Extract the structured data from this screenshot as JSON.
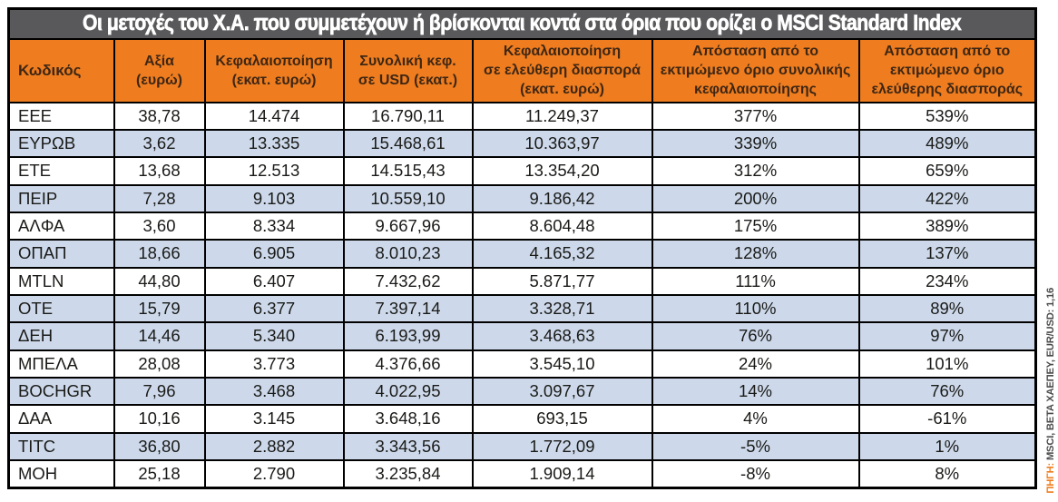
{
  "title": "Οι μετοχές του Χ.Α. που συμμετέχουν ή βρίσκονται κοντά στα όρια που ορίζει ο MSCI Standard Index",
  "source_note": {
    "label": "ΠΗΓΗ:",
    "text": " MSCI, BETA ΧΑΕΠΕΥ, EUR/USD: 1,16"
  },
  "colors": {
    "orange": "#ef7d1f",
    "title_bar": "#59595b",
    "row_shade": "#cdd9ea",
    "border": "#000000",
    "header_text": "#3e2614"
  },
  "chart_data": {
    "type": "table",
    "title": "Οι μετοχές του Χ.Α. που συμμετέχουν ή βρίσκονται κοντά στα όρια που ορίζει ο MSCI Standard Index",
    "columns": [
      "Κωδικός",
      "Αξία\n(ευρώ)",
      "Κεφαλαιοποίηση\n(εκατ. ευρώ)",
      "Συνολική κεφ.\nσε USD (εκατ.)",
      "Κεφαλαιοποίηση\nσε ελεύθερη διασπορά\n(εκατ. ευρώ)",
      "Απόσταση από το\nεκτιμώμενο όριο συνολικής\nκεφαλαιοποίησης",
      "Απόσταση από το\nεκτιμώμενο όριο\nελεύθερης διασποράς"
    ],
    "rows": [
      {
        "shaded": false,
        "cells": [
          "ΕΕΕ",
          "38,78",
          "14.474",
          "16.790,11",
          "11.249,37",
          "377%",
          "539%"
        ]
      },
      {
        "shaded": true,
        "cells": [
          "ΕΥΡΩΒ",
          "3,62",
          "13.335",
          "15.468,61",
          "10.363,97",
          "339%",
          "489%"
        ]
      },
      {
        "shaded": false,
        "cells": [
          "ΕΤΕ",
          "13,68",
          "12.513",
          "14.515,43",
          "13.354,20",
          "312%",
          "659%"
        ]
      },
      {
        "shaded": true,
        "cells": [
          "ΠΕΙΡ",
          "7,28",
          "9.103",
          "10.559,10",
          "9.186,42",
          "200%",
          "422%"
        ]
      },
      {
        "shaded": false,
        "cells": [
          "ΑΛΦΑ",
          "3,60",
          "8.334",
          "9.667,96",
          "8.604,48",
          "175%",
          "389%"
        ]
      },
      {
        "shaded": true,
        "cells": [
          "ΟΠΑΠ",
          "18,66",
          "6.905",
          "8.010,23",
          "4.165,32",
          "128%",
          "137%"
        ]
      },
      {
        "shaded": false,
        "cells": [
          "MTLN",
          "44,80",
          "6.407",
          "7.432,62",
          "5.871,77",
          "111%",
          "234%"
        ]
      },
      {
        "shaded": true,
        "cells": [
          "ΟΤΕ",
          "15,79",
          "6.377",
          "7.397,14",
          "3.328,71",
          "110%",
          "89%"
        ]
      },
      {
        "shaded": true,
        "cells": [
          "ΔΕΗ",
          "14,46",
          "5.340",
          "6.193,99",
          "3.468,63",
          "76%",
          "97%"
        ]
      },
      {
        "shaded": false,
        "cells": [
          "ΜΠΕΛΑ",
          "28,08",
          "3.773",
          "4.376,66",
          "3.545,10",
          "24%",
          "101%"
        ]
      },
      {
        "shaded": true,
        "cells": [
          "BOCHGR",
          "7,96",
          "3.468",
          "4.022,95",
          "3.097,67",
          "14%",
          "76%"
        ]
      },
      {
        "shaded": false,
        "cells": [
          "ΔΑΑ",
          "10,16",
          "3.145",
          "3.648,16",
          "693,15",
          "4%",
          "-61%"
        ]
      },
      {
        "shaded": true,
        "cells": [
          "TITC",
          "36,80",
          "2.882",
          "3.343,56",
          "1.772,09",
          "-5%",
          "1%"
        ]
      },
      {
        "shaded": false,
        "cells": [
          "ΜΟΗ",
          "25,18",
          "2.790",
          "3.235,84",
          "1.909,14",
          "-8%",
          "8%"
        ]
      }
    ]
  }
}
